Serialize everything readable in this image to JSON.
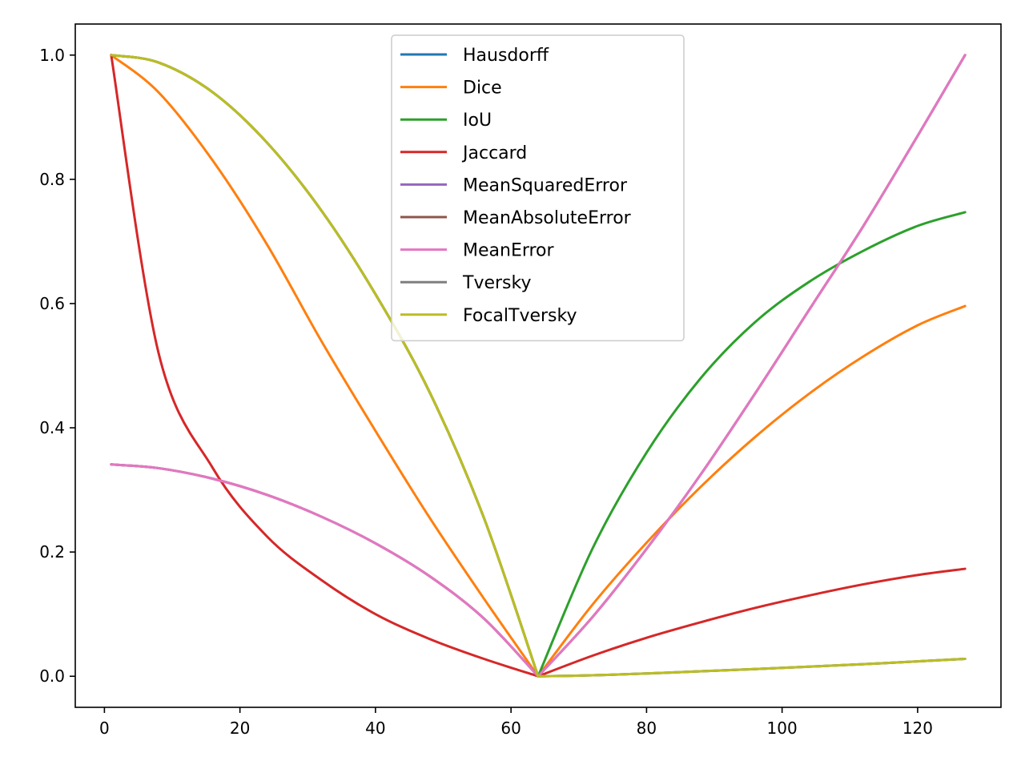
{
  "chart_data": {
    "type": "line",
    "title": "",
    "xlabel": "",
    "ylabel": "",
    "xlim": [
      -4.3,
      132.3
    ],
    "ylim": [
      -0.05,
      1.05
    ],
    "xticks": [
      0,
      20,
      40,
      60,
      80,
      100,
      120
    ],
    "xtick_labels": [
      "0",
      "20",
      "40",
      "60",
      "80",
      "100",
      "120"
    ],
    "yticks": [
      0.0,
      0.2,
      0.4,
      0.6,
      0.8,
      1.0
    ],
    "ytick_labels": [
      "0.0",
      "0.2",
      "0.4",
      "0.6",
      "0.8",
      "1.0"
    ],
    "grid": false,
    "legend_position": "top-center",
    "x": [
      1,
      8,
      16,
      24,
      32,
      40,
      48,
      56,
      64,
      72,
      80,
      88,
      96,
      104,
      112,
      120,
      127
    ],
    "series": [
      {
        "name": "Hausdorff",
        "color": "#1f77b4",
        "values": [
          1.0,
          0.988,
          0.94,
          0.859,
          0.75,
          0.615,
          0.457,
          0.255,
          0.0,
          0.0015,
          0.0045,
          0.008,
          0.0115,
          0.0155,
          0.0195,
          0.024,
          0.028
        ]
      },
      {
        "name": "Dice",
        "color": "#ff7f0e",
        "values": [
          1.0,
          0.94,
          0.83,
          0.695,
          0.54,
          0.395,
          0.255,
          0.125,
          0.0,
          0.115,
          0.215,
          0.305,
          0.385,
          0.455,
          0.515,
          0.565,
          0.596
        ]
      },
      {
        "name": "IoU",
        "color": "#2ca02c",
        "values": [
          1.0,
          0.988,
          0.94,
          0.859,
          0.75,
          0.615,
          0.457,
          0.255,
          0.0,
          0.205,
          0.36,
          0.48,
          0.57,
          0.635,
          0.685,
          0.725,
          0.747
        ]
      },
      {
        "name": "Jaccard",
        "color": "#d62728",
        "values": [
          1.0,
          0.52,
          0.335,
          0.225,
          0.155,
          0.1,
          0.06,
          0.028,
          0.0,
          0.033,
          0.062,
          0.087,
          0.11,
          0.13,
          0.148,
          0.163,
          0.173
        ]
      },
      {
        "name": "MeanSquaredError",
        "color": "#9467bd",
        "values": [
          0.341,
          0.335,
          0.318,
          0.292,
          0.257,
          0.214,
          0.161,
          0.093,
          0.0,
          0.095,
          0.205,
          0.325,
          0.455,
          0.59,
          0.725,
          0.87,
          1.0
        ]
      },
      {
        "name": "MeanAbsoluteError",
        "color": "#8c564b",
        "values": [
          0.341,
          0.335,
          0.318,
          0.292,
          0.257,
          0.214,
          0.161,
          0.093,
          0.0,
          0.095,
          0.205,
          0.325,
          0.455,
          0.59,
          0.725,
          0.87,
          1.0
        ]
      },
      {
        "name": "MeanError",
        "color": "#e377c2",
        "values": [
          0.341,
          0.335,
          0.318,
          0.292,
          0.257,
          0.214,
          0.161,
          0.093,
          0.0,
          0.095,
          0.205,
          0.325,
          0.455,
          0.59,
          0.725,
          0.87,
          1.0
        ]
      },
      {
        "name": "Tversky",
        "color": "#7f7f7f",
        "values": [
          1.0,
          0.988,
          0.94,
          0.859,
          0.75,
          0.615,
          0.457,
          0.255,
          0.0,
          0.0015,
          0.0045,
          0.008,
          0.0115,
          0.0155,
          0.0195,
          0.024,
          0.028
        ]
      },
      {
        "name": "FocalTversky",
        "color": "#bcbd22",
        "values": [
          1.0,
          0.988,
          0.94,
          0.859,
          0.75,
          0.615,
          0.457,
          0.255,
          0.0,
          0.0015,
          0.0045,
          0.008,
          0.0115,
          0.0155,
          0.0195,
          0.024,
          0.028
        ]
      }
    ]
  }
}
